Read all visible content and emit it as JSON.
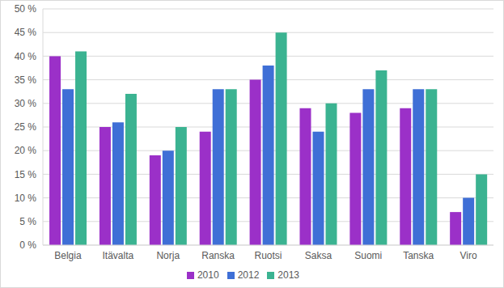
{
  "chart_data": {
    "type": "bar",
    "categories": [
      "Belgia",
      "Itävalta",
      "Norja",
      "Ranska",
      "Ruotsi",
      "Saksa",
      "Suomi",
      "Tanska",
      "Viro"
    ],
    "series": [
      {
        "name": "2010",
        "color": "#9b30c8",
        "values": [
          40,
          25,
          19,
          24,
          35,
          29,
          28,
          29,
          7
        ]
      },
      {
        "name": "2012",
        "color": "#3f6fd6",
        "values": [
          33,
          26,
          20,
          33,
          38,
          24,
          33,
          33,
          10
        ]
      },
      {
        "name": "2013",
        "color": "#3bb391",
        "values": [
          41,
          32,
          25,
          33,
          45,
          30,
          37,
          33,
          15
        ]
      }
    ],
    "ylim": [
      0,
      50
    ],
    "yticks": [
      {
        "value": 0,
        "label": "0 %"
      },
      {
        "value": 5,
        "label": "5 %"
      },
      {
        "value": 10,
        "label": "10 %"
      },
      {
        "value": 15,
        "label": "15 %"
      },
      {
        "value": 20,
        "label": "20 %"
      },
      {
        "value": 25,
        "label": "25 %"
      },
      {
        "value": 30,
        "label": "30 %"
      },
      {
        "value": 35,
        "label": "35 %"
      },
      {
        "value": 40,
        "label": "40 %"
      },
      {
        "value": 45,
        "label": "45 %"
      },
      {
        "value": 50,
        "label": "50 %"
      }
    ],
    "grid": true,
    "legend": "bottom"
  }
}
